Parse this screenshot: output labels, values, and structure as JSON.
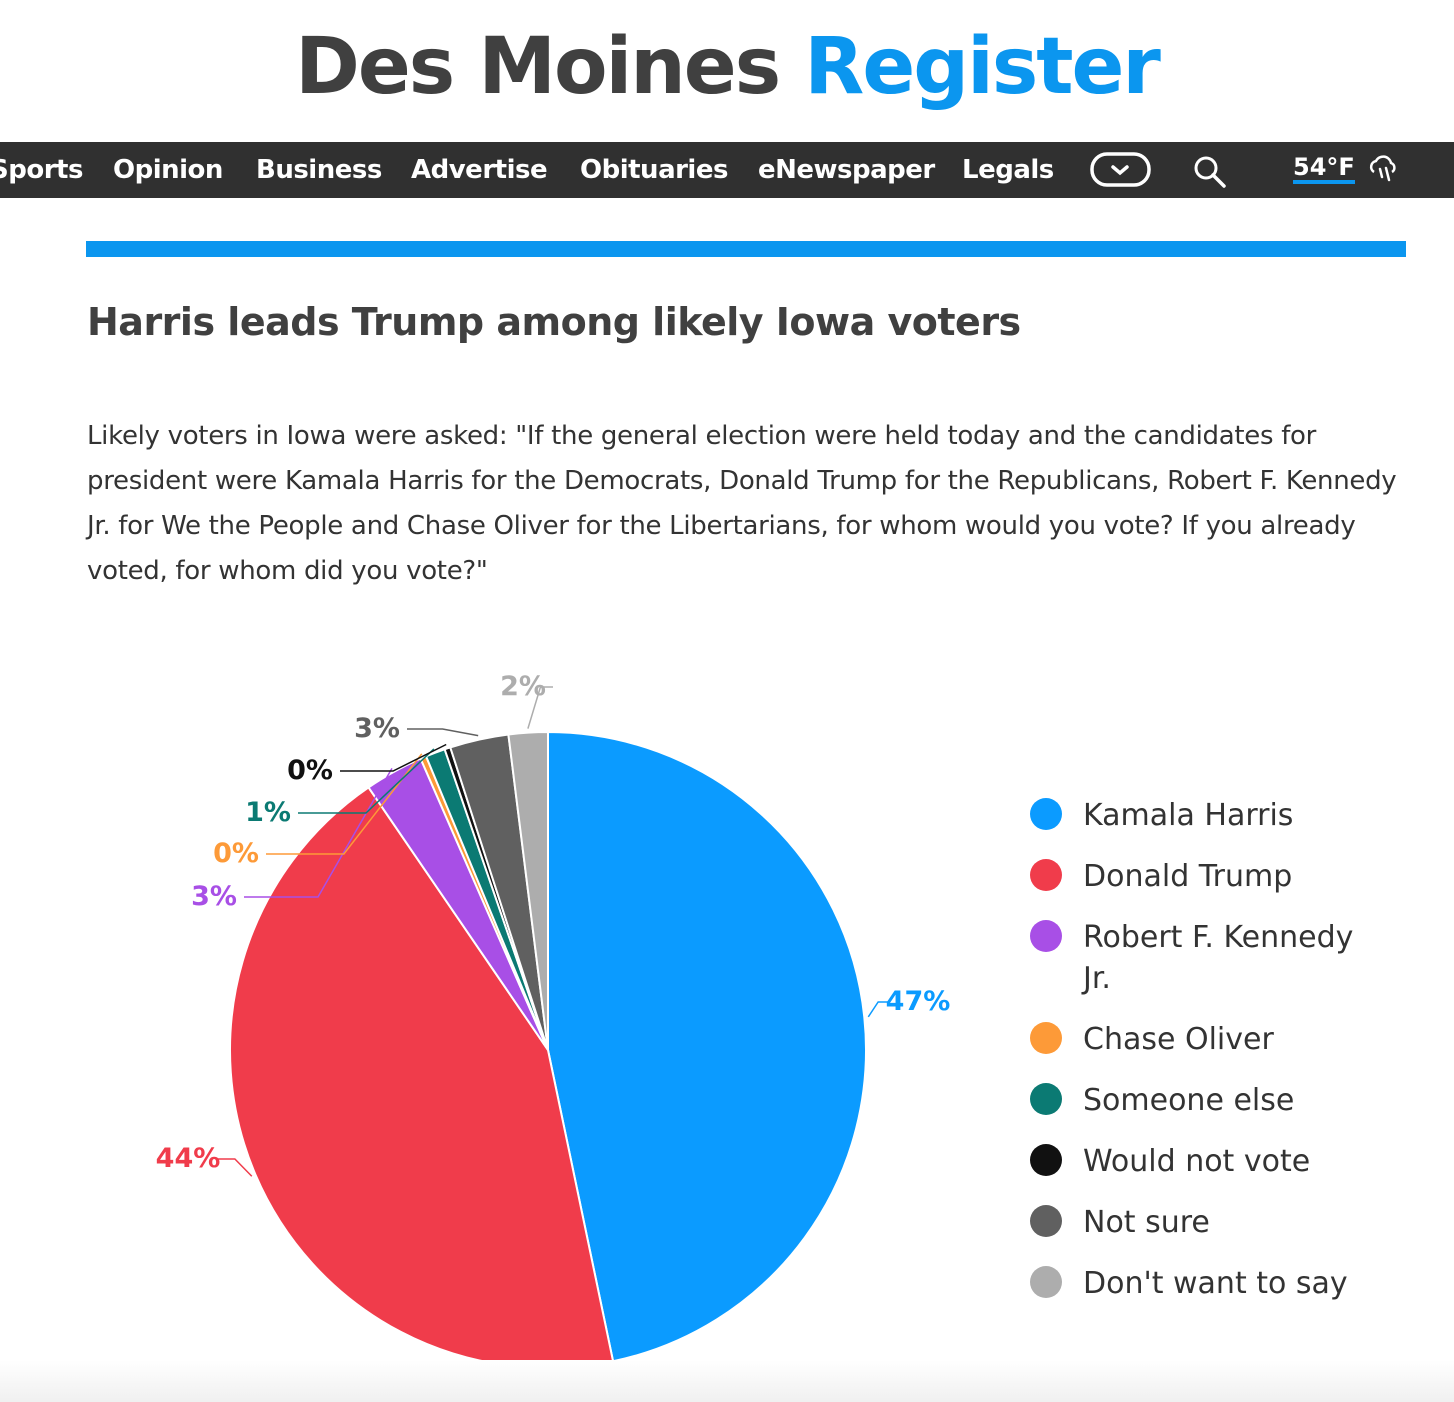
{
  "masthead": {
    "part1": "Des Moines",
    "part2": "Register"
  },
  "nav": {
    "items": [
      "Sports",
      "Opinion",
      "Business",
      "Advertise",
      "Obituaries",
      "eNewspaper",
      "Legals"
    ],
    "temperature": "54°F",
    "icons": [
      "chevron-down-icon",
      "search-icon",
      "rain-cloud-icon"
    ]
  },
  "article": {
    "title": "Harris leads Trump among likely Iowa voters",
    "intro": "Likely voters in Iowa were asked: \"If the general election were held today and the candidates for president were Kamala Harris for the Democrats, Donald Trump for the Republicans, Robert F. Kennedy Jr. for We the People and Chase Oliver for the Libertarians, for whom would you vote? If you already voted, for whom did you vote?\""
  },
  "chart_data": {
    "type": "pie",
    "title": "Harris leads Trump among likely Iowa voters",
    "categories": [
      "Kamala Harris",
      "Donald Trump",
      "Robert F. Kennedy Jr.",
      "Chase Oliver",
      "Someone else",
      "Would not vote",
      "Not sure",
      "Don't want to say"
    ],
    "values": [
      47,
      44,
      3,
      0.3,
      1,
      0.3,
      3,
      2
    ],
    "labels": [
      "47%",
      "44%",
      "3%",
      "0%",
      "1%",
      "0%",
      "3%",
      "2%"
    ],
    "colors": [
      "#0b9bff",
      "#f03c4b",
      "#a84fe6",
      "#fd9a38",
      "#0b7a73",
      "#111111",
      "#606060",
      "#adadad"
    ],
    "legend_position": "right"
  }
}
